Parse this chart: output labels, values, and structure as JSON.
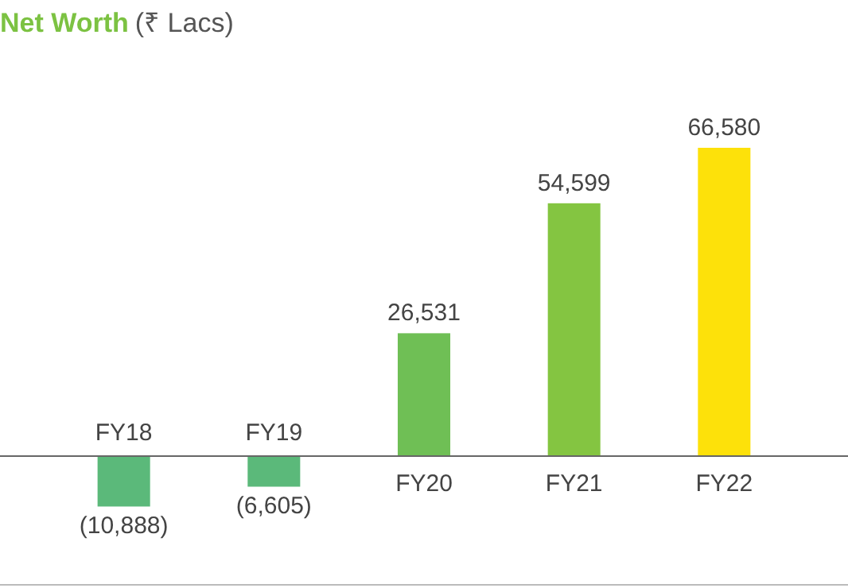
{
  "chart_data": {
    "type": "bar",
    "title": "Net Worth",
    "subtitle": "(₹ Lacs)",
    "categories": [
      "FY18",
      "FY19",
      "FY20",
      "FY21",
      "FY22"
    ],
    "values": [
      -10888,
      -6605,
      26531,
      54599,
      66580
    ],
    "value_labels": [
      "(10,888)",
      "(6,605)",
      "26,531",
      "54,599",
      "66,580"
    ],
    "colors": [
      "#5bb97a",
      "#5bb97a",
      "#6fbf55",
      "#84c541",
      "#fde10a"
    ]
  }
}
